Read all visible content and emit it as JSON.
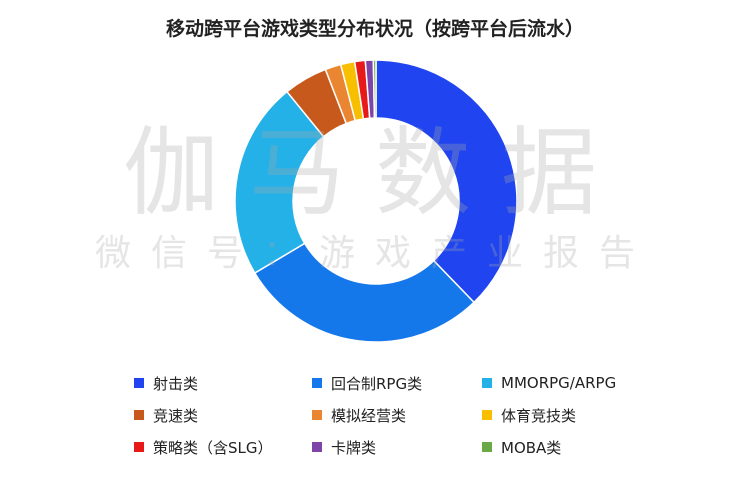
{
  "chart_data": {
    "type": "pie",
    "title": "移动跨平台游戏类型分布状况（按跨平台后流水）",
    "donut": true,
    "legend_position": "bottom",
    "categories": [
      "射击类",
      "回合制RPG类",
      "MMORPG/ARPG",
      "竞速类",
      "模拟经营类",
      "体育竞技类",
      "策略类（含SLG）",
      "卡牌类",
      "MOBA类"
    ],
    "values": [
      37.5,
      28.5,
      22.5,
      5.0,
      1.8,
      1.6,
      1.2,
      0.9,
      0.3
    ],
    "colors": [
      "#1f44f0",
      "#1477ea",
      "#23b1e8",
      "#c8591c",
      "#ea8632",
      "#f7bf00",
      "#e81919",
      "#7e44a8",
      "#6aaa46"
    ]
  },
  "watermark": {
    "main": "伽马数据",
    "sub": "微信号：游戏产业报告"
  }
}
